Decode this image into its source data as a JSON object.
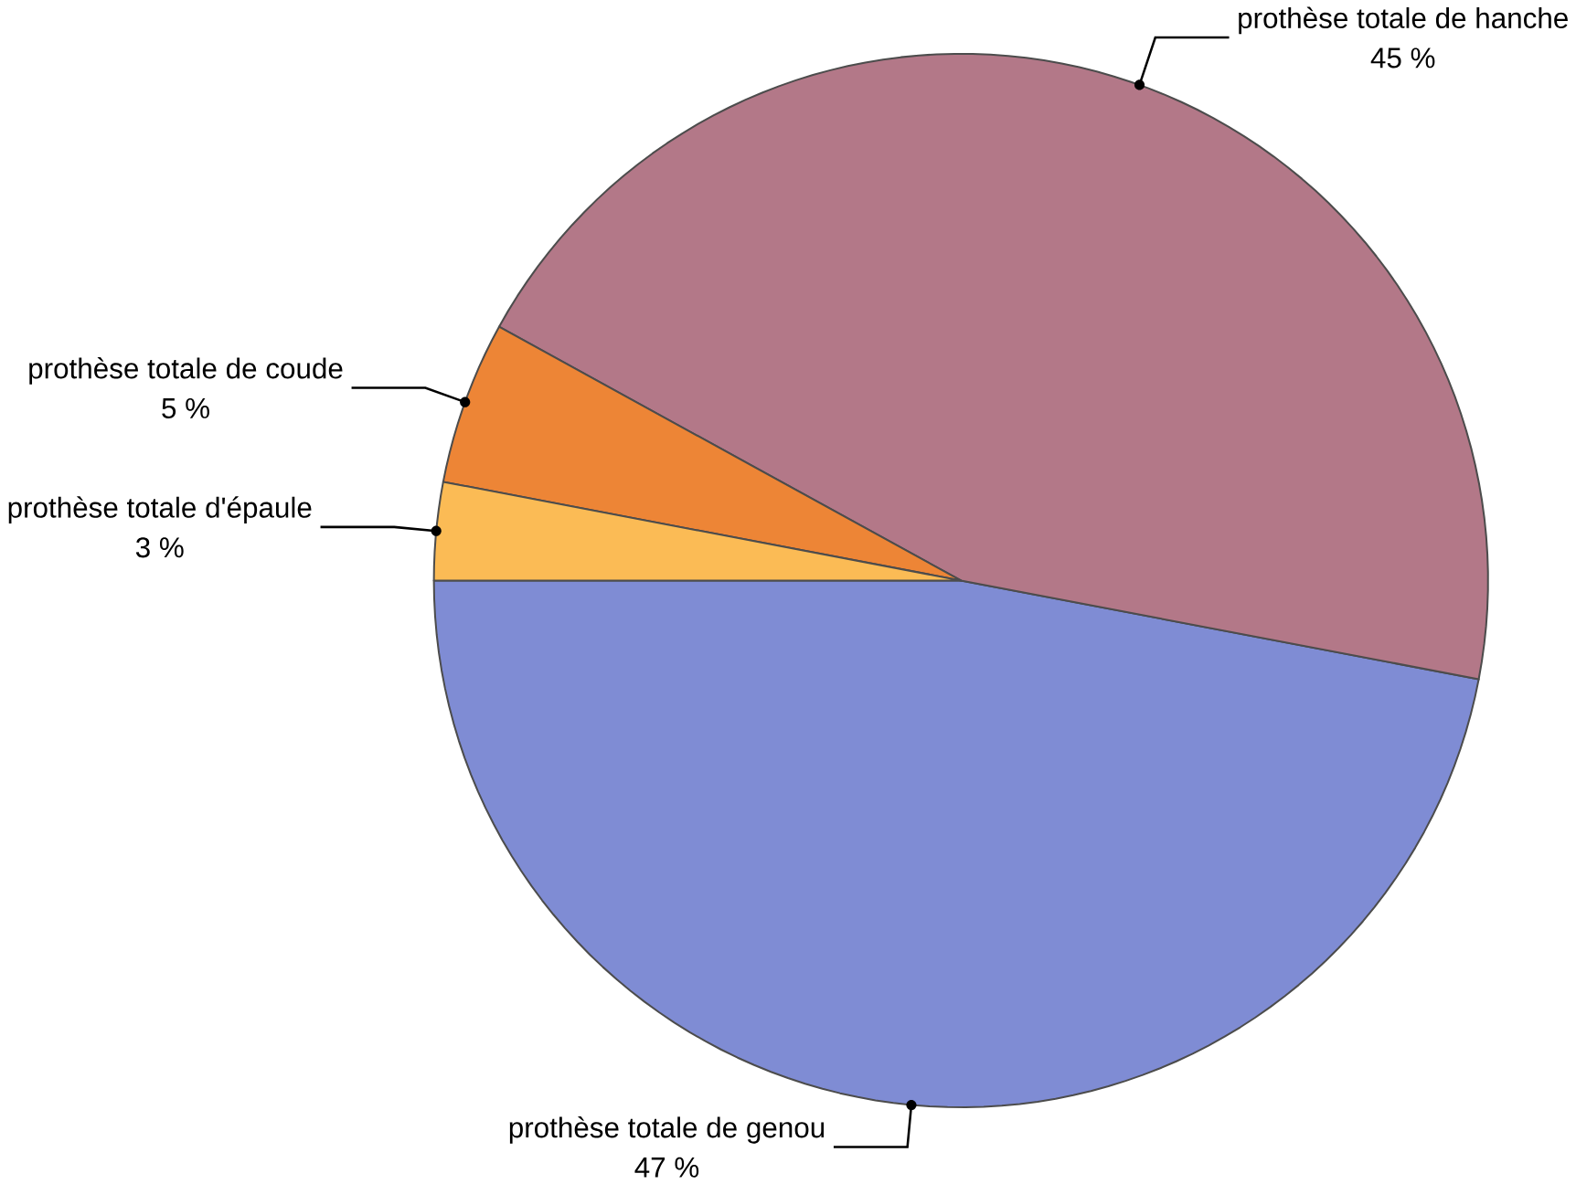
{
  "chart_data": {
    "type": "pie",
    "categories": [
      "prothèse totale de genou",
      "prothèse totale de hanche",
      "prothèse totale de coude",
      "prothèse totale d'épaule"
    ],
    "values": [
      47,
      45,
      5,
      3
    ],
    "value_labels": [
      "47 %",
      "45 %",
      "5 %",
      "3 %"
    ],
    "colors": [
      "#7f8cd4",
      "#b37888",
      "#ed8536",
      "#fbbb55"
    ]
  }
}
